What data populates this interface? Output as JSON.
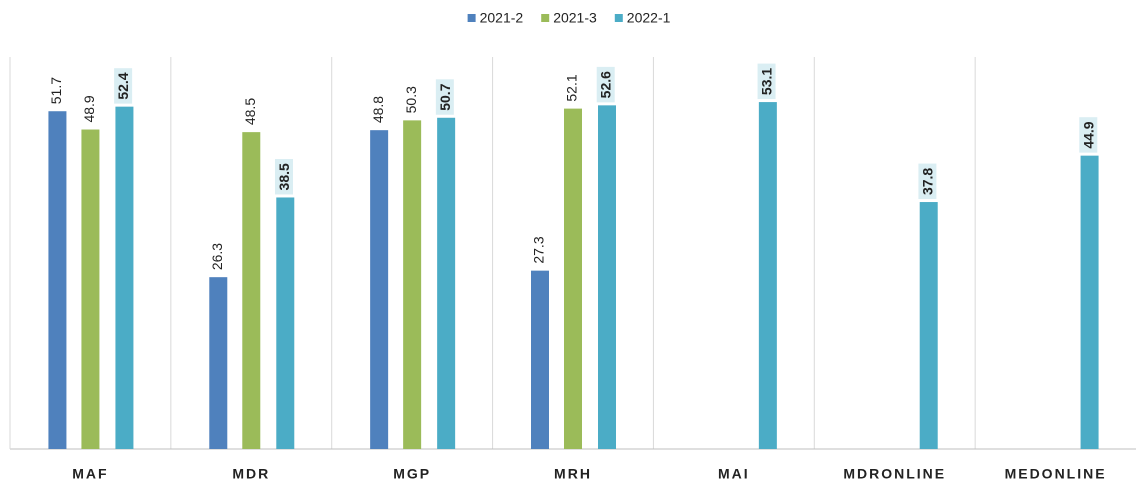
{
  "chart_data": {
    "type": "bar",
    "categories": [
      "MAF",
      "MDR",
      "MGP",
      "MRH",
      "MAI",
      "MDRONLINE",
      "MEDONLINE"
    ],
    "series": [
      {
        "name": "2021-2",
        "color": "#4f81bd",
        "values": [
          51.7,
          26.3,
          48.8,
          27.3,
          null,
          null,
          null
        ]
      },
      {
        "name": "2021-3",
        "color": "#9bbb59",
        "values": [
          48.9,
          48.5,
          50.3,
          52.1,
          null,
          null,
          null
        ]
      },
      {
        "name": "2022-1",
        "color": "#4bacc6",
        "values": [
          52.4,
          38.5,
          50.7,
          52.6,
          53.1,
          37.8,
          44.9
        ]
      }
    ],
    "ylim": [
      0,
      60
    ],
    "legend": "top"
  }
}
